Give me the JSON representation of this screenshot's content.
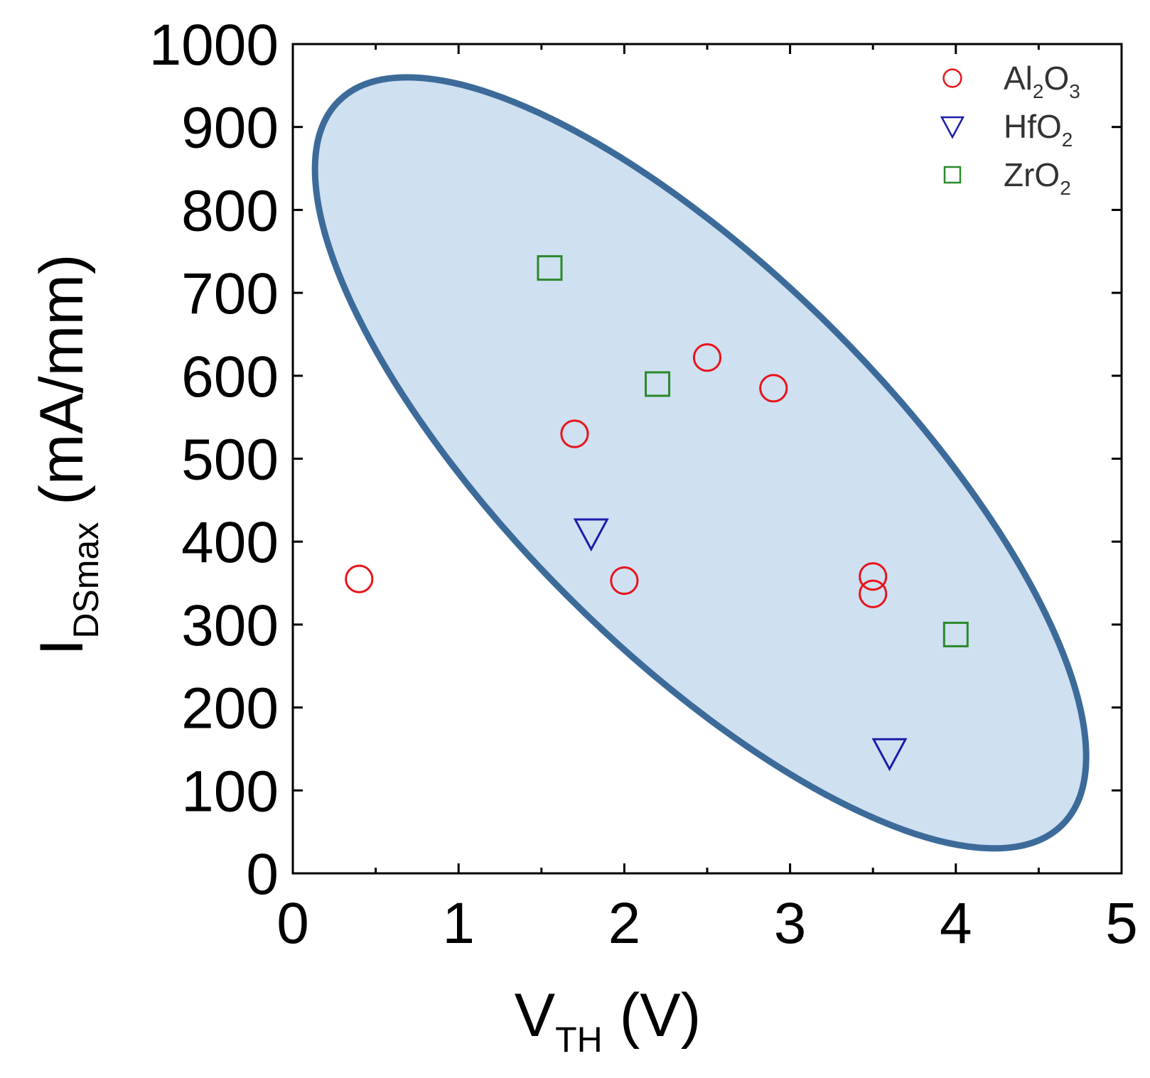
{
  "chart_data": {
    "type": "scatter",
    "title": "",
    "xlabel": {
      "main": "V",
      "sub": "TH",
      "unit": " (V)"
    },
    "ylabel": {
      "main": "I",
      "sub": "DSmax",
      "unit": " (mA/mm)"
    },
    "xlim": [
      0,
      5
    ],
    "ylim": [
      0,
      1000
    ],
    "xticks": [
      0,
      1,
      2,
      3,
      4,
      5
    ],
    "yticks": [
      0,
      100,
      200,
      300,
      400,
      500,
      600,
      700,
      800,
      900,
      1000
    ],
    "xtick_labels": [
      "0",
      "1",
      "2",
      "3",
      "4",
      "5"
    ],
    "ytick_labels": [
      "0",
      "100",
      "200",
      "300",
      "400",
      "500",
      "600",
      "700",
      "800",
      "900",
      "1000"
    ],
    "grid": false,
    "legend_position": "top-right",
    "series": [
      {
        "name": "Al2O3",
        "label_parts": [
          "Al",
          "2",
          "O",
          "3"
        ],
        "marker": "circle",
        "color": "#e8141a",
        "points": [
          [
            0.4,
            355
          ],
          [
            1.7,
            530
          ],
          [
            2.0,
            353
          ],
          [
            2.5,
            622
          ],
          [
            2.9,
            585
          ],
          [
            3.5,
            358
          ],
          [
            3.5,
            337
          ]
        ]
      },
      {
        "name": "HfO2",
        "label_parts": [
          "HfO",
          "2",
          "",
          ""
        ],
        "marker": "triangle-down",
        "color": "#1c1ca8",
        "points": [
          [
            1.8,
            410
          ],
          [
            3.6,
            145
          ]
        ]
      },
      {
        "name": "ZrO2",
        "label_parts": [
          "ZrO",
          "2",
          "",
          ""
        ],
        "marker": "square",
        "color": "#2a8a2a",
        "points": [
          [
            1.55,
            730
          ],
          [
            2.2,
            590
          ],
          [
            4.0,
            288
          ]
        ]
      }
    ],
    "annotations": [
      {
        "type": "ellipse",
        "center": [
          2.46,
          495
        ],
        "fill": "#cfe0f1",
        "stroke": "#3c6b9a"
      }
    ]
  }
}
